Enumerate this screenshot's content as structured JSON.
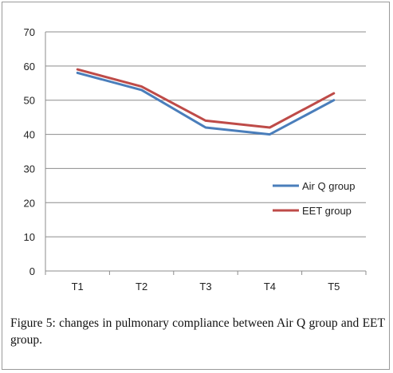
{
  "chart_data": {
    "type": "line",
    "categories": [
      "T1",
      "T2",
      "T3",
      "T4",
      "T5"
    ],
    "series": [
      {
        "name": "Air Q group",
        "values": [
          58,
          53,
          42,
          40,
          50
        ],
        "color": "#4a7ebb"
      },
      {
        "name": "EET group",
        "values": [
          59,
          54,
          44,
          42,
          52
        ],
        "color": "#be4b48"
      }
    ],
    "ylim": [
      0,
      70
    ],
    "yticks": [
      0,
      10,
      20,
      30,
      40,
      50,
      60,
      70
    ],
    "grid": true,
    "legend_position": "right",
    "title": "",
    "xlabel": "",
    "ylabel": ""
  },
  "caption": {
    "label": "Figure 5:",
    "text": " changes in pulmonary compliance between Air Q group and EET group."
  }
}
